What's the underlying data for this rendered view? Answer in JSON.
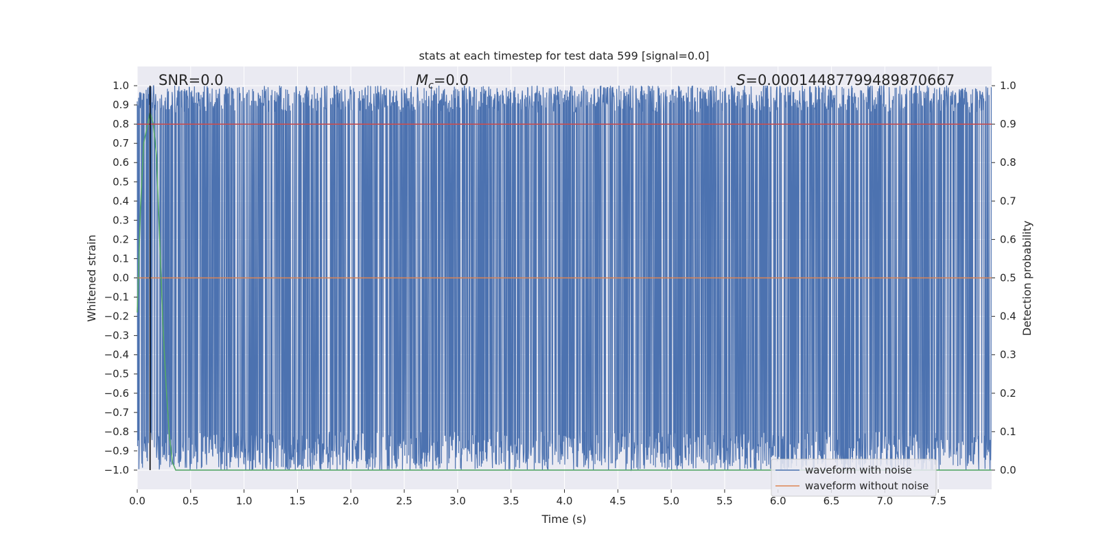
{
  "chart_data": {
    "type": "line",
    "title": "stats at each timestep for test data 599 [signal=0.0]",
    "xlabel": "Time (s)",
    "ylabel": "Whitened strain",
    "y2label": "Detection probability",
    "xlim": [
      0.0,
      8.0
    ],
    "ylim": [
      -1.1,
      1.1
    ],
    "y2lim": [
      -0.05,
      1.05
    ],
    "x_ticks": [
      0.0,
      0.5,
      1.0,
      1.5,
      2.0,
      2.5,
      3.0,
      3.5,
      4.0,
      4.5,
      5.0,
      5.5,
      6.0,
      6.5,
      7.0,
      7.5
    ],
    "y_ticks": [
      1.0,
      0.9,
      0.8,
      0.7,
      0.6,
      0.5,
      0.4,
      0.3,
      0.2,
      0.1,
      0.0,
      -0.1,
      -0.2,
      -0.3,
      -0.4,
      -0.5,
      -0.6,
      -0.7,
      -0.8,
      -0.9,
      -1.0
    ],
    "y2_ticks": [
      1.0,
      0.9,
      0.8,
      0.7,
      0.6,
      0.5,
      0.4,
      0.3,
      0.2,
      0.1,
      0.0
    ],
    "grid": true,
    "legend_position": "lower-right",
    "annotations": {
      "snr": "SNR=0.0",
      "mc_symbol": "M",
      "mc_sub": "c",
      "mc_value": "=0.0",
      "s_symbol": "S",
      "s_value": "=0.00014487799489870667"
    },
    "series": [
      {
        "name": "waveform with noise",
        "axis": "left",
        "color": "#4c72b0",
        "description": "dense whitened strain oscillating between about -1.0 and 1.0 over 0-8 s"
      },
      {
        "name": "waveform without noise",
        "axis": "left",
        "color": "#dd8452",
        "x": [
          0.0,
          8.0
        ],
        "y": [
          0.0,
          0.0
        ]
      },
      {
        "axis": "right",
        "color": "#55a868",
        "x": [
          0.0,
          0.03,
          0.06,
          0.09,
          0.12,
          0.15,
          0.18,
          0.21,
          0.24,
          0.27,
          0.3,
          0.33,
          0.36,
          0.4,
          1.0,
          2.0,
          3.0,
          4.0,
          5.0,
          6.0,
          7.0,
          8.0
        ],
        "y": [
          0.41,
          0.68,
          0.85,
          0.89,
          0.93,
          0.9,
          0.82,
          0.6,
          0.38,
          0.22,
          0.09,
          0.02,
          0.0,
          0.0,
          0.0,
          0.0,
          0.0,
          0.0,
          0.0,
          0.0,
          0.0,
          0.0
        ]
      },
      {
        "axis": "right",
        "color": "#c44e52",
        "x": [
          0.0,
          8.0
        ],
        "y": [
          0.9,
          0.9
        ]
      }
    ],
    "vertical_line": {
      "x": 0.12,
      "color": "#000000"
    },
    "noise_style": {
      "typical_min": -0.8,
      "typical_max": 0.86,
      "extreme": 1.0
    }
  }
}
